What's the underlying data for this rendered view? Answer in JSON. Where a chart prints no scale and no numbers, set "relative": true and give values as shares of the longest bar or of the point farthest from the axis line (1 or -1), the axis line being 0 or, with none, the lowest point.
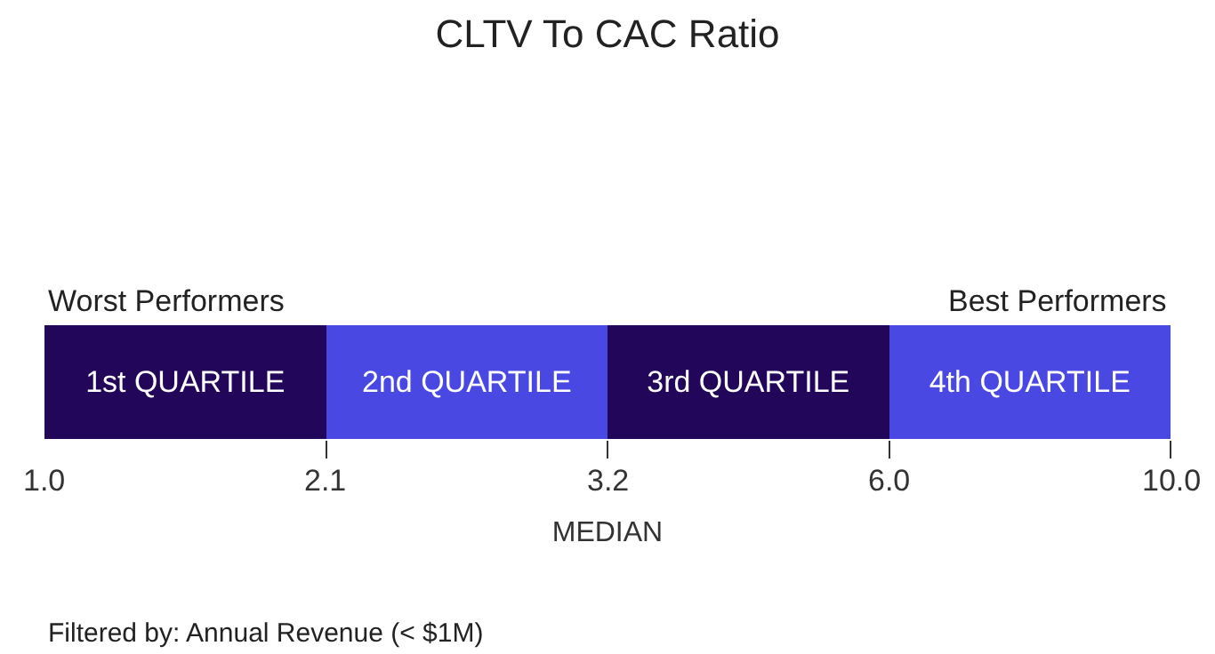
{
  "chart_data": {
    "type": "bar",
    "title": "CLTV To CAC Ratio",
    "orientation": "horizontal",
    "stacked": true,
    "relative": true,
    "categories": [
      null
    ],
    "series": [
      {
        "name": "1st QUARTILE",
        "color": "#22065a",
        "values": [
          0.25
        ]
      },
      {
        "name": "2nd QUARTILE",
        "color": "#4a48e2",
        "values": [
          0.25
        ]
      },
      {
        "name": "3rd QUARTILE",
        "color": "#22065a",
        "values": [
          0.25
        ]
      },
      {
        "name": "4th QUARTILE",
        "color": "#4a48e2",
        "values": [
          0.25
        ]
      }
    ],
    "xlabel": "MEDIAN",
    "annotations": [
      "Worst Performers",
      "Best Performers",
      "Filtered by: Annual Revenue (< $1M)",
      "1.0",
      {
        "text": "2.1",
        "x": 0.25
      },
      {
        "text": "3.2",
        "x": 0.5
      },
      {
        "text": "6.0",
        "x": 0.75
      },
      {
        "text": "10.0",
        "x": 1
      }
    ],
    "legend": false,
    "tick_labels": false
  }
}
